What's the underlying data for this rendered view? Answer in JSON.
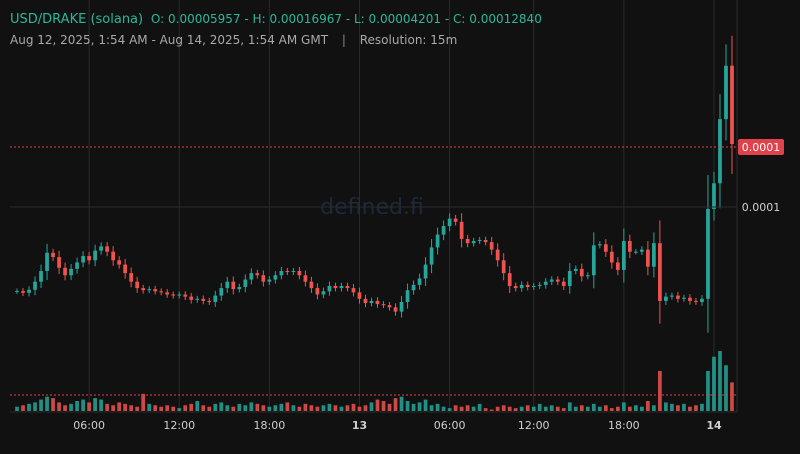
{
  "header": {
    "pair": "USD/DRAKE (solana)",
    "open_label": "O:",
    "open": "0.00005957",
    "high_label": "H:",
    "high": "0.00016967",
    "low_label": "L:",
    "low": "0.00004201",
    "close_label": "C:",
    "close": "0.00012840",
    "range": "Aug 12, 2025, 1:54 AM - Aug 14, 2025, 1:54 AM GMT",
    "separator": "|",
    "resolution": "Resolution: 15m"
  },
  "watermark": "defined.fi",
  "price_axis": {
    "current_price_tag": "0.0001",
    "grid_label": "0.0001"
  },
  "colors": {
    "up": "#26a69a",
    "down": "#ef5350",
    "background": "#111111",
    "grid": "#2a2a2a",
    "tag_bg": "#e0424b"
  },
  "chart_data": {
    "type": "candlestick",
    "x_ticks": [
      {
        "label": "06:00",
        "bold": false
      },
      {
        "label": "12:00",
        "bold": false
      },
      {
        "label": "18:00",
        "bold": false
      },
      {
        "label": "13",
        "bold": true
      },
      {
        "label": "06:00",
        "bold": false
      },
      {
        "label": "12:00",
        "bold": false
      },
      {
        "label": "18:00",
        "bold": false
      },
      {
        "label": "14",
        "bold": true
      }
    ],
    "ylim": [
      4e-05,
      0.00017
    ],
    "y_gridline": 0.0001,
    "current_price": 0.0001284,
    "close_series": [
      5.96e-05,
      5.88e-05,
      6.02e-05,
      6.4e-05,
      6.9e-05,
      7.75e-05,
      7.55e-05,
      7.05e-05,
      6.7e-05,
      7e-05,
      7.3e-05,
      7.6e-05,
      7.4e-05,
      7.85e-05,
      8.05e-05,
      7.8e-05,
      7.4e-05,
      7.2e-05,
      6.8e-05,
      6.4e-05,
      6.1e-05,
      6e-05,
      6.05e-05,
      5.95e-05,
      5.9e-05,
      5.8e-05,
      5.75e-05,
      5.8e-05,
      5.7e-05,
      5.55e-05,
      5.6e-05,
      5.5e-05,
      5.45e-05,
      5.75e-05,
      6.1e-05,
      6.4e-05,
      6.05e-05,
      6.15e-05,
      6.5e-05,
      6.8e-05,
      6.7e-05,
      6.4e-05,
      6.5e-05,
      6.7e-05,
      6.9e-05,
      6.85e-05,
      6.9e-05,
      6.7e-05,
      6.4e-05,
      6.1e-05,
      5.8e-05,
      5.95e-05,
      6.2e-05,
      6.1e-05,
      6.2e-05,
      6.1e-05,
      5.9e-05,
      5.6e-05,
      5.4e-05,
      5.5e-05,
      5.35e-05,
      5.3e-05,
      5.2e-05,
      5e-05,
      5.45e-05,
      6e-05,
      6.25e-05,
      6.55e-05,
      7.2e-05,
      8e-05,
      8.6e-05,
      9e-05,
      9.35e-05,
      9.2e-05,
      8.4e-05,
      8.2e-05,
      8.3e-05,
      8.35e-05,
      8.25e-05,
      7.9e-05,
      7.4e-05,
      6.8e-05,
      6.2e-05,
      6.1e-05,
      6.25e-05,
      6.15e-05,
      6.2e-05,
      6.25e-05,
      6.4e-05,
      6.5e-05,
      6.4e-05,
      6.2e-05,
      6.9e-05,
      7e-05,
      6.65e-05,
      6.7e-05,
      8.1e-05,
      8.15e-05,
      7.8e-05,
      7.3e-05,
      6.95e-05,
      8.3e-05,
      7.8e-05,
      7.8e-05,
      7.9e-05,
      7.1e-05,
      8.2e-05,
      5.5e-05,
      5.7e-05,
      5.75e-05,
      5.6e-05,
      5.65e-05,
      5.5e-05,
      5.45e-05,
      5.6e-05,
      9.8e-05,
      0.00011,
      0.00014,
      0.000165,
      0.0001284
    ],
    "volume_series": [
      3,
      4,
      5,
      6,
      8,
      10,
      9,
      6,
      4,
      5,
      7,
      8,
      6,
      9,
      8,
      5,
      4,
      6,
      5,
      4,
      3,
      12,
      5,
      4,
      3,
      4,
      3,
      2,
      4,
      5,
      7,
      4,
      3,
      5,
      6,
      4,
      3,
      5,
      4,
      6,
      5,
      4,
      3,
      4,
      5,
      6,
      4,
      3,
      5,
      4,
      3,
      4,
      5,
      4,
      3,
      4,
      5,
      3,
      4,
      6,
      8,
      7,
      5,
      9,
      10,
      7,
      5,
      6,
      8,
      4,
      5,
      3,
      2,
      4,
      3,
      4,
      3,
      5,
      2,
      1,
      3,
      4,
      3,
      2,
      3,
      4,
      3,
      5,
      3,
      4,
      3,
      2,
      6,
      3,
      4,
      3,
      5,
      3,
      4,
      2,
      3,
      6,
      3,
      4,
      3,
      7,
      4,
      28,
      6,
      5,
      4,
      5,
      3,
      4,
      5,
      28,
      38,
      42,
      32,
      20
    ]
  }
}
